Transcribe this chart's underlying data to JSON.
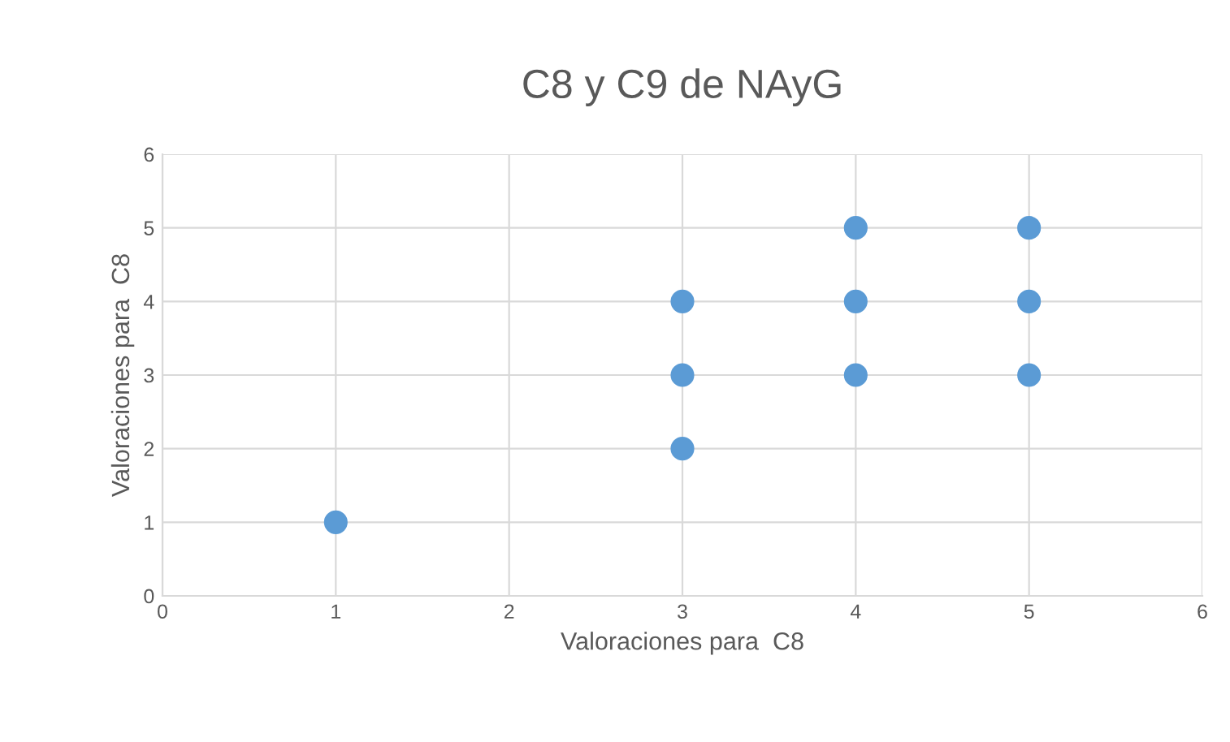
{
  "chart_data": {
    "type": "scatter",
    "title": "C8 y C9 de NAyG",
    "xlabel": "Valoraciones para  C8",
    "ylabel": "Valoraciones para  C8",
    "x": [
      1,
      3,
      3,
      3,
      4,
      4,
      4,
      5,
      5,
      5
    ],
    "series": [
      {
        "color": "#5b9bd5",
        "values": [
          1,
          2,
          3,
          4,
          3,
          4,
          5,
          3,
          4,
          5
        ]
      }
    ],
    "xlim": [
      0,
      6
    ],
    "ylim": [
      0,
      6
    ],
    "xticks": [
      0,
      1,
      2,
      3,
      4,
      5,
      6
    ],
    "yticks": [
      0,
      1,
      2,
      3,
      4,
      5,
      6
    ],
    "grid": true,
    "marker": "circle",
    "legend": false
  }
}
